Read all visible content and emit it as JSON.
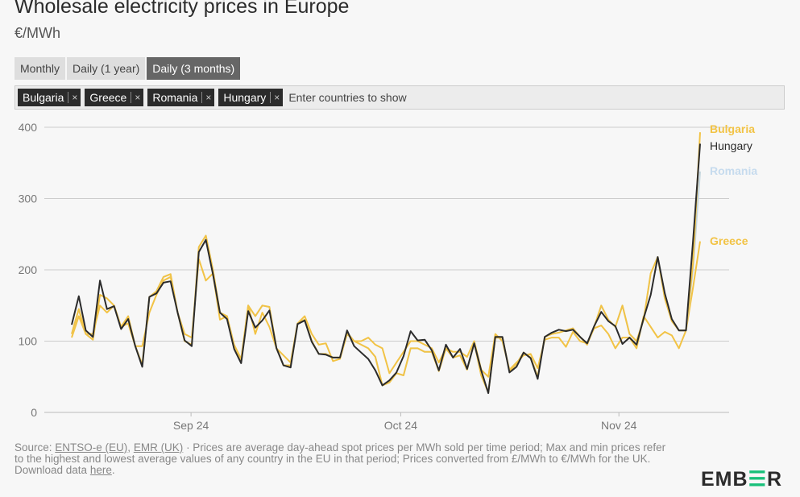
{
  "header": {
    "title": "Wholesale electricity prices in Europe",
    "subtitle": "€/MWh"
  },
  "tabs": [
    {
      "label": "Monthly"
    },
    {
      "label": "Daily (1 year)"
    },
    {
      "label": "Daily (3 months)",
      "active": true
    }
  ],
  "picker": {
    "chips": [
      "Bulgaria",
      "Greece",
      "Romania",
      "Hungary"
    ],
    "remove_label": "×",
    "placeholder": "Enter countries to show"
  },
  "chart_data": {
    "type": "line",
    "title": "Wholesale electricity prices in Europe",
    "ylabel": "€/MWh",
    "ylim": [
      0,
      400
    ],
    "yticks": [
      0,
      100,
      200,
      300,
      400
    ],
    "x_range": "daily, mid-Aug 2024 to mid-Nov 2024 (90 days)",
    "xticks": [
      {
        "label": "Sep 24",
        "index": 16.9
      },
      {
        "label": "Oct 24",
        "index": 46.6
      },
      {
        "label": "Nov 24",
        "index": 77.5
      }
    ],
    "grid": true,
    "legend": "right, end-of-line labels",
    "series": [
      {
        "name": "Greece",
        "color": "#f2c345",
        "values": [
          105,
          135,
          110,
          110,
          150,
          140,
          150,
          120,
          125,
          93,
          93,
          140,
          165,
          185,
          190,
          140,
          110,
          105,
          215,
          185,
          195,
          130,
          135,
          95,
          75,
          150,
          110,
          140,
          120,
          90,
          80,
          70,
          125,
          135,
          110,
          95,
          97,
          72,
          75,
          110,
          100,
          100,
          105,
          95,
          90,
          55,
          70,
          85,
          100,
          100,
          95,
          90,
          70,
          90,
          85,
          85,
          78,
          100,
          60,
          50,
          110,
          100,
          60,
          70,
          80,
          82,
          62,
          102,
          105,
          105,
          92,
          113,
          100,
          97,
          118,
          122,
          110,
          90,
          105,
          105,
          90,
          135,
          120,
          105,
          113,
          108,
          90,
          115,
          175,
          240
        ]
      },
      {
        "name": "Romania",
        "color": "#c4d6de",
        "values": [
          110,
          145,
          110,
          102,
          165,
          160,
          150,
          120,
          135,
          93,
          67,
          162,
          170,
          190,
          194,
          140,
          100,
          95,
          232,
          248,
          200,
          140,
          135,
          90,
          70,
          150,
          135,
          150,
          148,
          90,
          66,
          66,
          125,
          130,
          100,
          82,
          82,
          77,
          77,
          112,
          100,
          95,
          90,
          78,
          38,
          42,
          55,
          52,
          90,
          90,
          85,
          85,
          58,
          90,
          77,
          80,
          60,
          98,
          52,
          28,
          105,
          105,
          58,
          68,
          84,
          77,
          50,
          106,
          110,
          112,
          115,
          118,
          106,
          95,
          120,
          150,
          130,
          120,
          150,
          110,
          100,
          130,
          195,
          218,
          160,
          128,
          115,
          115,
          200,
          338
        ]
      },
      {
        "name": "Bulgaria",
        "color": "#f2c345",
        "values": [
          110,
          145,
          110,
          102,
          165,
          160,
          150,
          120,
          135,
          93,
          67,
          162,
          170,
          190,
          194,
          140,
          100,
          95,
          232,
          248,
          200,
          140,
          135,
          90,
          70,
          150,
          135,
          150,
          148,
          90,
          66,
          66,
          125,
          130,
          100,
          82,
          82,
          77,
          77,
          112,
          100,
          95,
          90,
          78,
          38,
          42,
          55,
          52,
          90,
          90,
          85,
          85,
          58,
          90,
          77,
          80,
          60,
          98,
          52,
          28,
          105,
          105,
          58,
          68,
          84,
          77,
          50,
          106,
          110,
          112,
          115,
          118,
          106,
          95,
          120,
          150,
          130,
          120,
          150,
          110,
          100,
          130,
          195,
          218,
          160,
          128,
          115,
          115,
          210,
          393
        ]
      },
      {
        "name": "Hungary",
        "color": "#2b2b2b",
        "values": [
          123,
          163,
          115,
          106,
          185,
          145,
          149,
          117,
          131,
          93,
          64,
          162,
          167,
          182,
          184,
          140,
          101,
          93,
          225,
          242,
          194,
          140,
          131,
          89,
          69,
          142,
          119,
          129,
          143,
          90,
          66,
          63,
          124,
          129,
          99,
          82,
          81,
          77,
          77,
          115,
          93,
          84,
          75,
          59,
          38,
          45,
          56,
          79,
          114,
          101,
          102,
          87,
          59,
          95,
          77,
          89,
          61,
          97,
          59,
          27,
          106,
          106,
          56,
          64,
          84,
          76,
          47,
          106,
          112,
          116,
          114,
          116,
          106,
          97,
          121,
          141,
          128,
          121,
          96,
          105,
          95,
          132,
          165,
          218,
          167,
          131,
          115,
          115,
          240,
          377
        ]
      }
    ]
  },
  "footer": {
    "source_prefix": "Source: ",
    "link1": "ENTSO-e (EU)",
    "sep": ", ",
    "link2": "EMR (UK)",
    "text": " · Prices are average day-ahead spot prices per MWh sold per time period; Max and min prices refer to the highest and lowest average values of any country in the EU in that period; Prices converted from £/MWh to €/MWh for the UK.",
    "download_prefix": "Download data ",
    "download_link": "here",
    "download_suffix": "."
  },
  "logo": {
    "text": "EMBER"
  }
}
